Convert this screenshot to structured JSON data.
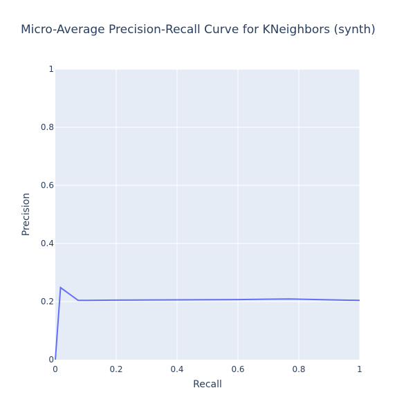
{
  "chart_data": {
    "type": "line",
    "title": "Micro-Average Precision-Recall Curve for KNeighbors (synth)",
    "xlabel": "Recall",
    "ylabel": "Precision",
    "xlim": [
      0,
      1
    ],
    "ylim": [
      0,
      1
    ],
    "grid": true,
    "x_ticks": [
      "0",
      "0.2",
      "0.4",
      "0.6",
      "0.8",
      "1"
    ],
    "y_ticks": [
      "0",
      "0.2",
      "0.4",
      "0.6",
      "0.8",
      "1"
    ],
    "series": [
      {
        "color": "#636efa",
        "x": [
          0.0,
          0.017,
          0.075,
          0.2,
          0.4,
          0.6,
          0.77,
          1.0
        ],
        "y": [
          0.0,
          0.248,
          0.204,
          0.205,
          0.206,
          0.207,
          0.209,
          0.204
        ]
      }
    ]
  }
}
